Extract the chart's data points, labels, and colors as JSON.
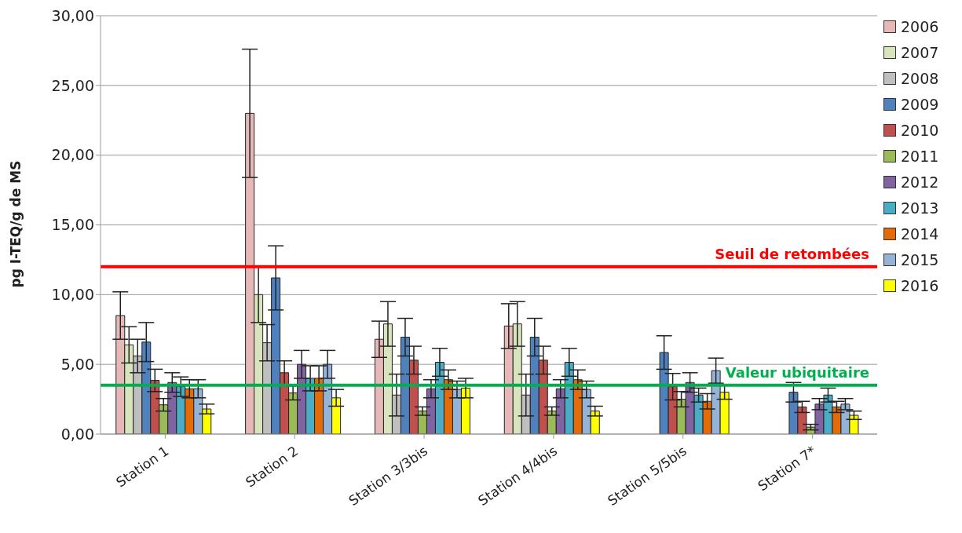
{
  "chart_data": {
    "type": "bar",
    "ylabel": "pg I-TEQ/g de MS",
    "categories": [
      "Station 1",
      "Station 2",
      "Station 3/3bis",
      "Station 4/4bis",
      "Station 5/5bis",
      "Station 7*"
    ],
    "series": [
      {
        "name": "2006",
        "color": "#e6b9b8",
        "values": [
          8.5,
          23.0,
          6.8,
          7.75,
          null,
          null
        ],
        "errors": [
          1.7,
          4.6,
          1.3,
          1.6,
          null,
          null
        ]
      },
      {
        "name": "2007",
        "color": "#d7e4bd",
        "values": [
          6.4,
          10.0,
          7.9,
          7.9,
          null,
          null
        ],
        "errors": [
          1.3,
          2.0,
          1.6,
          1.6,
          null,
          null
        ]
      },
      {
        "name": "2008",
        "color": "#bfbfbf",
        "values": [
          5.6,
          6.55,
          2.8,
          2.8,
          null,
          null
        ],
        "errors": [
          1.2,
          1.3,
          1.5,
          1.5,
          null,
          null
        ]
      },
      {
        "name": "2009",
        "color": "#4f81bd",
        "values": [
          6.6,
          11.2,
          6.95,
          6.95,
          5.85,
          3.0
        ],
        "errors": [
          1.4,
          2.3,
          1.35,
          1.35,
          1.2,
          0.7
        ]
      },
      {
        "name": "2010",
        "color": "#c0504d",
        "values": [
          3.85,
          4.4,
          5.3,
          5.3,
          3.4,
          1.95
        ],
        "errors": [
          0.8,
          0.85,
          1.0,
          1.0,
          0.95,
          0.4
        ]
      },
      {
        "name": "2011",
        "color": "#9bbb59",
        "values": [
          2.1,
          2.95,
          1.65,
          1.65,
          2.5,
          0.5
        ],
        "errors": [
          0.45,
          0.5,
          0.3,
          0.3,
          0.55,
          0.2
        ]
      },
      {
        "name": "2012",
        "color": "#8064a2",
        "values": [
          3.7,
          5.0,
          3.25,
          3.25,
          3.7,
          2.15
        ],
        "errors": [
          0.7,
          1.0,
          0.65,
          0.65,
          0.7,
          0.4
        ]
      },
      {
        "name": "2013",
        "color": "#4bacc6",
        "values": [
          3.4,
          4.0,
          5.15,
          5.15,
          2.8,
          2.8
        ],
        "errors": [
          0.7,
          0.9,
          1.0,
          1.0,
          0.5,
          0.5
        ]
      },
      {
        "name": "2014",
        "color": "#e36c09",
        "values": [
          3.25,
          4.0,
          3.9,
          3.9,
          2.35,
          1.95
        ],
        "errors": [
          0.65,
          0.9,
          0.7,
          0.7,
          0.55,
          0.4
        ]
      },
      {
        "name": "2015",
        "color": "#95b3d7",
        "values": [
          3.25,
          5.0,
          3.2,
          3.2,
          4.55,
          2.15
        ],
        "errors": [
          0.65,
          1.0,
          0.6,
          0.6,
          0.9,
          0.4
        ]
      },
      {
        "name": "2016",
        "color": "#ffff00",
        "values": [
          1.8,
          2.6,
          3.3,
          1.65,
          3.0,
          1.35
        ],
        "errors": [
          0.35,
          0.6,
          0.7,
          0.35,
          0.5,
          0.3
        ]
      }
    ],
    "ylim": [
      0,
      30
    ],
    "yticks": [
      {
        "value": 0,
        "label": "0,00"
      },
      {
        "value": 5,
        "label": "5,00"
      },
      {
        "value": 10,
        "label": "10,00"
      },
      {
        "value": 15,
        "label": "15,00"
      },
      {
        "value": 20,
        "label": "20,00"
      },
      {
        "value": 25,
        "label": "25,00"
      },
      {
        "value": 30,
        "label": "30,00"
      }
    ],
    "ref_lines": [
      {
        "axis": "y",
        "value": 12,
        "label": "Seuil de retombées",
        "color": "#ff0000"
      },
      {
        "axis": "y",
        "value": 3.5,
        "label": "Valeur ubiquitaire",
        "color": "#00b050"
      }
    ],
    "grid": "y",
    "legend": "right"
  }
}
